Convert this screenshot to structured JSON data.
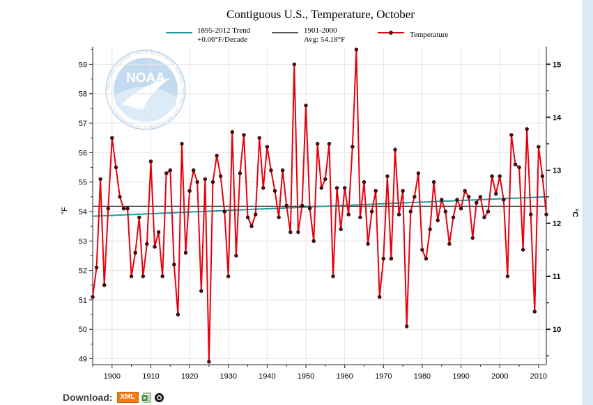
{
  "chart_data": {
    "type": "line",
    "title": "Contiguous U.S., Temperature, October",
    "ylabel": "°F",
    "y2label": "°C",
    "xlim": [
      1895,
      2012
    ],
    "ylim": [
      48.8,
      59.6
    ],
    "x_ticks": [
      1900,
      1910,
      1920,
      1930,
      1940,
      1950,
      1960,
      1970,
      1980,
      1990,
      2000,
      2010
    ],
    "y_ticks": [
      49,
      50,
      51,
      52,
      53,
      54,
      55,
      56,
      57,
      58,
      59
    ],
    "y2_ticks": [
      10,
      11,
      12,
      13,
      14,
      15
    ],
    "grid": true,
    "legend_position": "top",
    "legend": [
      {
        "line1": "1895-2012 Trend",
        "line2": "+0.06°F/Decade",
        "color": "#1a9aa0"
      },
      {
        "line1": "1901-2000",
        "line2": "Avg: 54.18°F",
        "color": "#222222"
      },
      {
        "line1": "Temperature",
        "line2": "",
        "color": "#e8000c"
      }
    ],
    "trend": {
      "x": [
        1895,
        2012
      ],
      "y": [
        53.84,
        54.5
      ]
    },
    "average": {
      "value": 54.18
    },
    "series": [
      {
        "name": "Temperature",
        "color": "#e8000c",
        "x": [
          1895,
          1896,
          1897,
          1898,
          1899,
          1900,
          1901,
          1902,
          1903,
          1904,
          1905,
          1906,
          1907,
          1908,
          1909,
          1910,
          1911,
          1912,
          1913,
          1914,
          1915,
          1916,
          1917,
          1918,
          1919,
          1920,
          1921,
          1922,
          1923,
          1924,
          1925,
          1926,
          1927,
          1928,
          1929,
          1930,
          1931,
          1932,
          1933,
          1934,
          1935,
          1936,
          1937,
          1938,
          1939,
          1940,
          1941,
          1942,
          1943,
          1944,
          1945,
          1946,
          1947,
          1948,
          1949,
          1950,
          1951,
          1952,
          1953,
          1954,
          1955,
          1956,
          1957,
          1958,
          1959,
          1960,
          1961,
          1962,
          1963,
          1964,
          1965,
          1966,
          1967,
          1968,
          1969,
          1970,
          1971,
          1972,
          1973,
          1974,
          1975,
          1976,
          1977,
          1978,
          1979,
          1980,
          1981,
          1982,
          1983,
          1984,
          1985,
          1986,
          1987,
          1988,
          1989,
          1990,
          1991,
          1992,
          1993,
          1994,
          1995,
          1996,
          1997,
          1998,
          1999,
          2000,
          2001,
          2002,
          2003,
          2004,
          2005,
          2006,
          2007,
          2008,
          2009,
          2010,
          2011,
          2012
        ],
        "y": [
          51.1,
          52.1,
          55.1,
          51.5,
          54.1,
          56.5,
          55.5,
          54.5,
          54.1,
          54.1,
          51.8,
          52.6,
          53.8,
          51.8,
          52.9,
          55.7,
          52.8,
          53.3,
          51.8,
          55.3,
          55.4,
          52.2,
          50.5,
          56.3,
          52.6,
          54.7,
          55.4,
          55.0,
          51.3,
          55.1,
          48.9,
          55.0,
          55.9,
          55.2,
          54.0,
          51.8,
          56.7,
          52.5,
          55.3,
          56.6,
          53.8,
          53.5,
          53.9,
          56.5,
          54.8,
          56.2,
          55.4,
          54.7,
          53.8,
          55.4,
          54.2,
          53.3,
          59.0,
          53.3,
          54.2,
          57.6,
          54.1,
          53.0,
          56.3,
          54.8,
          55.1,
          56.3,
          51.8,
          54.8,
          53.4,
          54.8,
          53.9,
          56.2,
          59.5,
          53.8,
          55.0,
          52.9,
          54.0,
          54.7,
          51.1,
          52.4,
          55.2,
          52.4,
          56.1,
          53.9,
          54.7,
          50.1,
          54.0,
          54.5,
          55.3,
          52.7,
          52.4,
          53.4,
          55.0,
          53.7,
          54.4,
          54.0,
          52.9,
          53.8,
          54.4,
          54.1,
          54.7,
          54.5,
          53.1,
          54.3,
          54.5,
          53.8,
          54.0,
          55.2,
          54.6,
          55.2,
          54.4,
          51.8,
          56.6,
          55.6,
          55.5,
          52.7,
          56.8,
          53.9,
          50.6,
          56.2,
          55.2,
          53.9
        ]
      }
    ]
  },
  "watermark": {
    "text": "NOAA",
    "ring_text": "NATIONAL OCEANIC AND ATMOSPHERIC ADMINISTRATION · U.S. DEPARTMENT OF COMMERCE"
  },
  "download": {
    "label": "Download:",
    "xml_label": "XML",
    "excel_icon": "excel-icon",
    "other_icon": "ring-icon"
  }
}
